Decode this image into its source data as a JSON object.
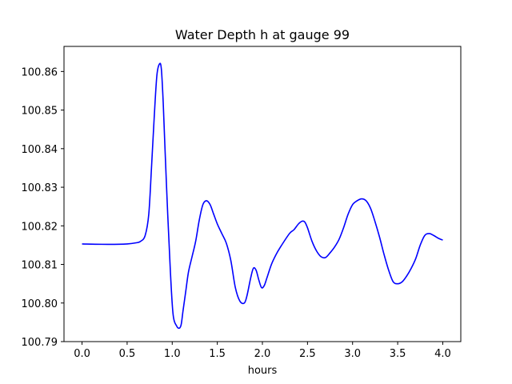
{
  "chart_data": {
    "type": "line",
    "title": "Water Depth h at gauge 99",
    "xlabel": "hours",
    "ylabel": "",
    "xlim": [
      -0.2,
      4.2
    ],
    "ylim": [
      100.79,
      100.8665
    ],
    "xticks": [
      "0.0",
      "0.5",
      "1.0",
      "1.5",
      "2.0",
      "2.5",
      "3.0",
      "3.5",
      "4.0"
    ],
    "yticks": [
      "100.79",
      "100.80",
      "100.81",
      "100.82",
      "100.83",
      "100.84",
      "100.85",
      "100.86"
    ],
    "grid": false,
    "series": [
      {
        "color": "#0000ff",
        "x": [
          0.0,
          0.3,
          0.5,
          0.6,
          0.65,
          0.7,
          0.74,
          0.77,
          0.8,
          0.83,
          0.86,
          0.88,
          0.9,
          0.92,
          0.95,
          0.98,
          1.01,
          1.05,
          1.08,
          1.1,
          1.12,
          1.15,
          1.18,
          1.22,
          1.26,
          1.3,
          1.34,
          1.38,
          1.42,
          1.46,
          1.5,
          1.55,
          1.6,
          1.65,
          1.7,
          1.75,
          1.8,
          1.83,
          1.87,
          1.9,
          1.93,
          1.96,
          1.99,
          2.02,
          2.05,
          2.1,
          2.15,
          2.2,
          2.3,
          2.35,
          2.4,
          2.44,
          2.47,
          2.5,
          2.55,
          2.6,
          2.65,
          2.7,
          2.75,
          2.8,
          2.85,
          2.9,
          2.95,
          3.0,
          3.05,
          3.1,
          3.15,
          3.2,
          3.25,
          3.3,
          3.35,
          3.4,
          3.45,
          3.5,
          3.55,
          3.6,
          3.65,
          3.7,
          3.75,
          3.8,
          3.85,
          3.9,
          3.95,
          4.0
        ],
        "y": [
          100.8153,
          100.8152,
          100.8153,
          100.8156,
          100.816,
          100.8175,
          100.823,
          100.835,
          100.848,
          100.859,
          100.862,
          100.8605,
          100.852,
          100.84,
          100.823,
          100.808,
          100.797,
          100.794,
          100.7935,
          100.7945,
          100.798,
          100.803,
          100.808,
          100.812,
          100.816,
          100.8215,
          100.8255,
          100.8265,
          100.8255,
          100.823,
          100.8205,
          100.818,
          100.8155,
          100.811,
          100.804,
          100.8005,
          100.8,
          100.802,
          100.8065,
          100.809,
          100.8085,
          100.806,
          100.804,
          100.8045,
          100.8065,
          100.81,
          100.8125,
          100.8145,
          100.818,
          100.819,
          100.8205,
          100.8212,
          100.821,
          100.8195,
          100.816,
          100.8135,
          100.812,
          100.8118,
          100.813,
          100.8145,
          100.8165,
          100.8195,
          100.823,
          100.8255,
          100.8265,
          100.827,
          100.8265,
          100.8245,
          100.821,
          100.817,
          100.8125,
          100.8085,
          100.8055,
          100.805,
          100.8055,
          100.807,
          100.809,
          100.8115,
          100.815,
          100.8175,
          100.818,
          100.8175,
          100.8168,
          100.8163
        ]
      }
    ]
  }
}
